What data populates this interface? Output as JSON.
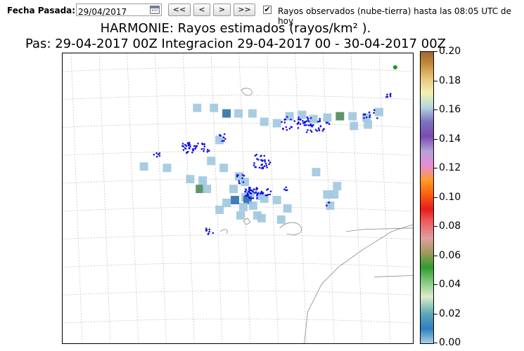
{
  "toolbar": {
    "date_label": "Fecha Pasada:",
    "date_value": "29/04/2017",
    "nav_buttons": [
      "<<",
      "<",
      ">",
      ">>"
    ],
    "observed_checked": true,
    "observed_label": "Rayos observados (nube-tierra) hasta las 08:05 UTC de hoy"
  },
  "titles": {
    "line1": "HARMONIE: Rayos estimados  (rayos/km² ).",
    "line2": "Pas: 29-04-2017 00Z Integracion 29-04-2017 00 - 30-04-2017 00Z"
  },
  "colorbar": {
    "ticks": [
      "0.20",
      "0.18",
      "0.16",
      "0.14",
      "0.12",
      "0.10",
      "0.08",
      "0.06",
      "0.04",
      "0.02",
      "0.00"
    ],
    "colors": [
      "#a9cfe6",
      "#2f7fbd",
      "#5aa6b7",
      "#86c97f",
      "#2f9d2f",
      "#e61c1c",
      "#ff9b2b",
      "#7b4bb2",
      "#f2f2b0",
      "#a6662e"
    ]
  },
  "map": {
    "estimated_cell_color": "#9ec8e0",
    "strong_cell_color": "#2f6fa8",
    "green_cell_color": "#4e8a5a",
    "observed_dot_color": "#1010e6",
    "marker_color": "#1a9a1a"
  }
}
